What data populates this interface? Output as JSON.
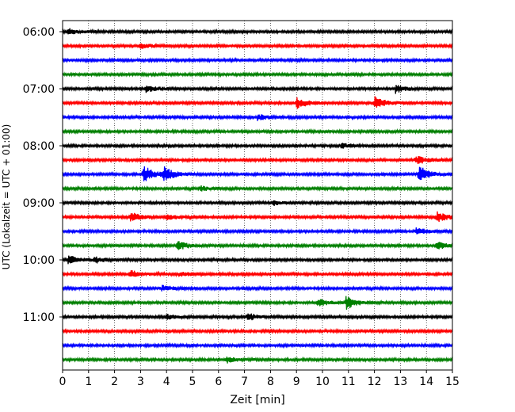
{
  "chart_data": {
    "type": "line",
    "title": "",
    "xlabel": "Zeit  [min]",
    "ylabel": "UTC (Lokalzeit = UTC + 01:00)",
    "xlim": [
      0,
      15
    ],
    "x_ticks": [
      0,
      1,
      2,
      3,
      4,
      5,
      6,
      7,
      8,
      9,
      10,
      11,
      12,
      13,
      14,
      15
    ],
    "y_tick_labels": [
      "06:00",
      "07:00",
      "08:00",
      "09:00",
      "10:00",
      "11:00"
    ],
    "grid": "vertical dotted",
    "traces_per_hour": 4,
    "color_cycle": [
      "#000000",
      "#ff0000",
      "#0000ff",
      "#008000"
    ],
    "traces": [
      {
        "start": "06:00",
        "events": [
          {
            "t": 0.2,
            "amp": 0.25
          }
        ]
      },
      {
        "start": "06:15",
        "events": [
          {
            "t": 3.0,
            "amp": 0.2
          }
        ]
      },
      {
        "start": "06:30",
        "events": []
      },
      {
        "start": "06:45",
        "events": []
      },
      {
        "start": "07:00",
        "events": [
          {
            "t": 3.2,
            "amp": 0.3
          },
          {
            "t": 12.8,
            "amp": 0.35
          }
        ]
      },
      {
        "start": "07:15",
        "events": [
          {
            "t": 9.0,
            "amp": 0.45
          },
          {
            "t": 12.0,
            "amp": 0.5
          }
        ]
      },
      {
        "start": "07:30",
        "events": [
          {
            "t": 7.5,
            "amp": 0.25
          }
        ]
      },
      {
        "start": "07:45",
        "events": []
      },
      {
        "start": "08:00",
        "events": [
          {
            "t": 10.7,
            "amp": 0.2
          }
        ]
      },
      {
        "start": "08:15",
        "events": [
          {
            "t": 13.6,
            "amp": 0.35
          }
        ]
      },
      {
        "start": "08:30",
        "events": [
          {
            "t": 3.1,
            "amp": 0.75
          },
          {
            "t": 3.9,
            "amp": 0.55
          },
          {
            "t": 13.7,
            "amp": 0.7
          }
        ]
      },
      {
        "start": "08:45",
        "events": [
          {
            "t": 5.3,
            "amp": 0.2
          }
        ]
      },
      {
        "start": "09:00",
        "events": [
          {
            "t": 8.1,
            "amp": 0.2
          }
        ]
      },
      {
        "start": "09:15",
        "events": [
          {
            "t": 2.6,
            "amp": 0.4
          },
          {
            "t": 4.0,
            "amp": 0.2
          },
          {
            "t": 14.4,
            "amp": 0.45
          }
        ]
      },
      {
        "start": "09:30",
        "events": [
          {
            "t": 13.6,
            "amp": 0.3
          }
        ]
      },
      {
        "start": "09:45",
        "events": [
          {
            "t": 4.4,
            "amp": 0.4
          },
          {
            "t": 14.4,
            "amp": 0.35
          }
        ]
      },
      {
        "start": "10:00",
        "events": [
          {
            "t": 0.2,
            "amp": 0.35
          },
          {
            "t": 1.2,
            "amp": 0.25
          }
        ]
      },
      {
        "start": "10:15",
        "events": [
          {
            "t": 2.6,
            "amp": 0.3
          },
          {
            "t": 4.5,
            "amp": 0.2
          }
        ]
      },
      {
        "start": "10:30",
        "events": [
          {
            "t": 3.8,
            "amp": 0.25
          }
        ]
      },
      {
        "start": "10:45",
        "events": [
          {
            "t": 10.9,
            "amp": 0.55
          },
          {
            "t": 9.8,
            "amp": 0.35
          }
        ]
      },
      {
        "start": "11:00",
        "events": [
          {
            "t": 7.1,
            "amp": 0.3
          },
          {
            "t": 4.0,
            "amp": 0.2
          }
        ]
      },
      {
        "start": "11:15",
        "events": []
      },
      {
        "start": "11:30",
        "events": []
      },
      {
        "start": "11:45",
        "events": [
          {
            "t": 6.3,
            "amp": 0.25
          }
        ]
      }
    ]
  }
}
